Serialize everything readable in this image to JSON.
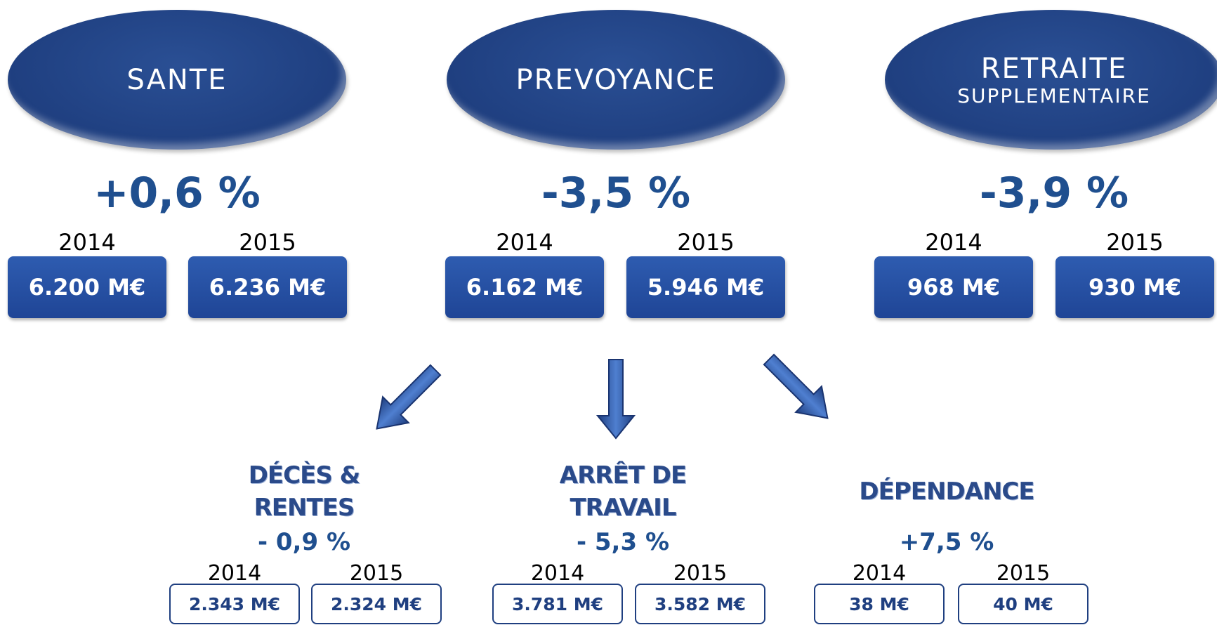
{
  "sections": [
    {
      "title": [
        "SANTE"
      ],
      "change": "+0,6 %",
      "years": [
        {
          "year": "2014",
          "value": "6.200 M€"
        },
        {
          "year": "2015",
          "value": "6.236 M€"
        }
      ]
    },
    {
      "title": [
        "PREVOYANCE"
      ],
      "change": "-3,5 %",
      "years": [
        {
          "year": "2014",
          "value": "6.162 M€"
        },
        {
          "year": "2015",
          "value": "5.946 M€"
        }
      ]
    },
    {
      "title": [
        "RETRAITE",
        "SUPPLEMENTAIRE"
      ],
      "change": "-3,9 %",
      "years": [
        {
          "year": "2014",
          "value": "968 M€"
        },
        {
          "year": "2015",
          "value": "930 M€"
        }
      ]
    }
  ],
  "subsections": [
    {
      "title": [
        "DÉCÈS &",
        "RENTES"
      ],
      "change": "- 0,9 %",
      "years": [
        {
          "year": "2014",
          "value": "2.343 M€"
        },
        {
          "year": "2015",
          "value": "2.324 M€"
        }
      ]
    },
    {
      "title": [
        "ARRÊT DE",
        "TRAVAIL"
      ],
      "change": "- 5,3 %",
      "years": [
        {
          "year": "2014",
          "value": "3.781 M€"
        },
        {
          "year": "2015",
          "value": "3.582 M€"
        }
      ]
    },
    {
      "title": [
        "DÉPENDANCE"
      ],
      "change": "+7,5 %",
      "years": [
        {
          "year": "2014",
          "value": "38 M€"
        },
        {
          "year": "2015",
          "value": "40 M€"
        }
      ]
    }
  ]
}
